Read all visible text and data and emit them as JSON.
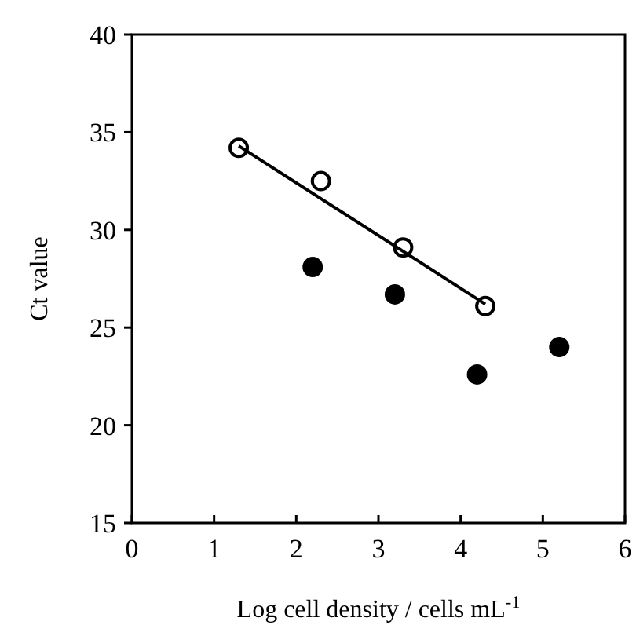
{
  "chart_data": {
    "type": "scatter",
    "xlabel": "Log cell density / cells mL$^{-1}$",
    "ylabel": "Ct value",
    "xlim": [
      0,
      6
    ],
    "xticks": [
      0,
      1,
      2,
      3,
      4,
      5,
      6
    ],
    "ylim": [
      15,
      40
    ],
    "yticks": [
      15,
      20,
      25,
      30,
      35,
      40
    ],
    "grid": false,
    "marker": "circle",
    "series": [
      {
        "color": "#ffffff",
        "x": [
          1.3,
          2.3,
          3.3,
          4.3
        ],
        "values": [
          34.2,
          32.5,
          29.1,
          26.1
        ]
      },
      {
        "color": "#000000",
        "x": [
          2.2,
          3.2,
          4.2,
          5.2
        ],
        "values": [
          28.1,
          26.7,
          22.6,
          24.0
        ]
      },
      {
        "type": "line",
        "color": "#000000",
        "marker": "none",
        "x": [
          1.3,
          4.3
        ],
        "values": [
          34.3,
          26.2
        ]
      }
    ]
  }
}
